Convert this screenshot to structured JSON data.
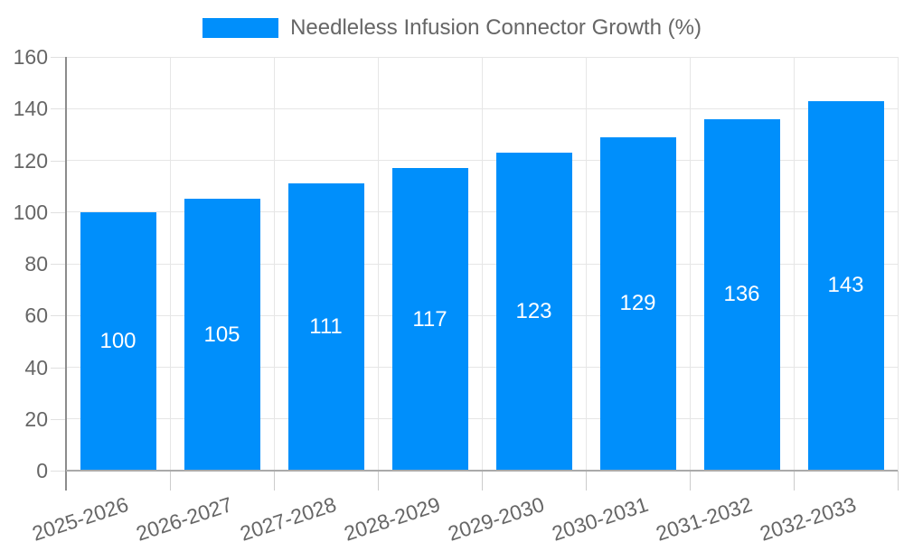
{
  "chart_data": {
    "type": "bar",
    "title": "Needleless Infusion Connector Growth (%)",
    "series_name": "Needleless Infusion Connector Growth (%)",
    "categories": [
      "2025-2026",
      "2026-2027",
      "2027-2028",
      "2028-2029",
      "2029-2030",
      "2030-2031",
      "2031-2032",
      "2032-2033"
    ],
    "values": [
      100,
      105,
      111,
      117,
      123,
      129,
      136,
      143
    ],
    "xlabel": "",
    "ylabel": "",
    "ylim": [
      0,
      160
    ],
    "yticks": [
      0,
      20,
      40,
      60,
      80,
      100,
      120,
      140,
      160
    ],
    "grid": true,
    "legend_position": "top-center",
    "value_label_position": "inside-center",
    "colors": {
      "bar": "#008FFB",
      "value_label": "#FFFFFF",
      "axis_label": "#666666",
      "gridline": "#E6E6E6"
    }
  }
}
